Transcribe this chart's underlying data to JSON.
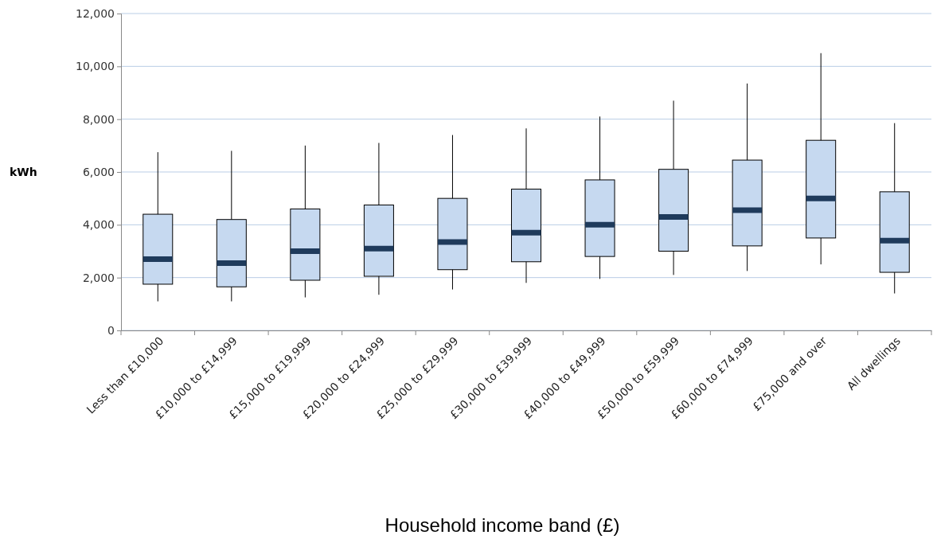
{
  "chart_data": {
    "type": "box",
    "xlabel": "Household income band (£)",
    "ylabel": "kWh",
    "categories": [
      "Less than £10,000",
      "£10,000 to £14,999",
      "£15,000 to £19,999",
      "£20,000 to £24,999",
      "£25,000 to £29,999",
      "£30,000 to £39,999",
      "£40,000 to £49,999",
      "£50,000 to £59,999",
      "£60,000 to £74,999",
      "£75,000 and over",
      "All dwellings"
    ],
    "boxes": [
      {
        "low": 1100,
        "q1": 1750,
        "median": 2700,
        "q3": 4400,
        "high": 6750
      },
      {
        "low": 1100,
        "q1": 1650,
        "median": 2550,
        "q3": 4200,
        "high": 6800
      },
      {
        "low": 1250,
        "q1": 1900,
        "median": 3000,
        "q3": 4600,
        "high": 7000
      },
      {
        "low": 1350,
        "q1": 2050,
        "median": 3100,
        "q3": 4750,
        "high": 7100
      },
      {
        "low": 1550,
        "q1": 2300,
        "median": 3350,
        "q3": 5000,
        "high": 7400
      },
      {
        "low": 1800,
        "q1": 2600,
        "median": 3700,
        "q3": 5350,
        "high": 7650
      },
      {
        "low": 1950,
        "q1": 2800,
        "median": 4000,
        "q3": 5700,
        "high": 8100
      },
      {
        "low": 2100,
        "q1": 3000,
        "median": 4300,
        "q3": 6100,
        "high": 8700
      },
      {
        "low": 2250,
        "q1": 3200,
        "median": 4550,
        "q3": 6450,
        "high": 9350
      },
      {
        "low": 2500,
        "q1": 3500,
        "median": 5000,
        "q3": 7200,
        "high": 10500
      },
      {
        "low": 1400,
        "q1": 2200,
        "median": 3400,
        "q3": 5250,
        "high": 7850
      }
    ],
    "color": "#c6d9f0",
    "ylim": [
      0,
      12000
    ],
    "yticks": [
      {
        "value": 0,
        "label": "0"
      },
      {
        "value": 2000,
        "label": "2,000"
      },
      {
        "value": 4000,
        "label": "4,000"
      },
      {
        "value": 6000,
        "label": "6,000"
      },
      {
        "value": 8000,
        "label": "8,000"
      },
      {
        "value": 10000,
        "label": "10,000"
      },
      {
        "value": 12000,
        "label": "12,000"
      }
    ],
    "grid": "y"
  }
}
